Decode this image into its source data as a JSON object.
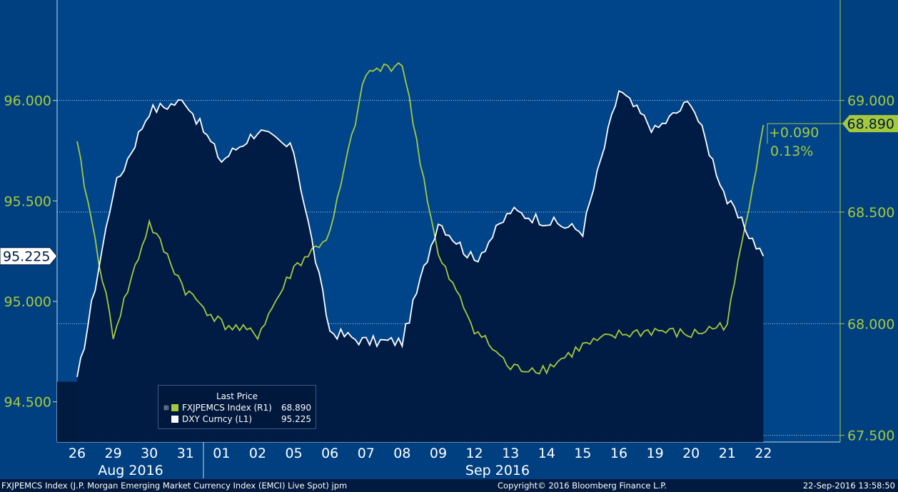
{
  "chart_data": {
    "type": "line",
    "title": "",
    "xlabel": "",
    "grid": "horizontal dotted",
    "x": [
      "26",
      "29",
      "30",
      "31",
      "01",
      "02",
      "05",
      "06",
      "07",
      "08",
      "09",
      "12",
      "13",
      "14",
      "15",
      "16",
      "19",
      "20",
      "21",
      "22"
    ],
    "month_labels": [
      "Aug 2016",
      "Sep 2016"
    ],
    "left_axis": {
      "ticks": [
        "96.000",
        "95.500",
        "95.000",
        "94.500"
      ],
      "ylim": [
        94.3,
        96.5
      ]
    },
    "right_axis": {
      "ticks": [
        "69.000",
        "68.500",
        "68.000",
        "67.500"
      ],
      "ylim": [
        67.47,
        69.45
      ]
    },
    "series": [
      {
        "name": "FXJPEMCS Index (R1)",
        "axis": "right",
        "color": "#a6c93c",
        "values": [
          68.8,
          67.95,
          68.45,
          68.15,
          68.0,
          67.95,
          68.25,
          68.4,
          69.12,
          69.17,
          68.3,
          67.98,
          67.8,
          67.8,
          67.9,
          67.95,
          67.97,
          67.95,
          68.0,
          68.89
        ]
      },
      {
        "name": "DXY Curncy (L1)",
        "axis": "left",
        "color": "#ffffff",
        "values": [
          94.6,
          95.55,
          95.95,
          96.0,
          95.7,
          95.85,
          95.75,
          94.85,
          94.8,
          94.8,
          95.4,
          95.2,
          95.45,
          95.4,
          95.35,
          96.05,
          95.85,
          96.0,
          95.5,
          95.225
        ]
      }
    ],
    "current_labels": {
      "left": "95.225",
      "right": "68.890"
    },
    "change": {
      "abs": "+0.090",
      "pct": "0.13%"
    }
  },
  "legend": {
    "title": "Last Price",
    "expand_icon": "⊞",
    "rows": [
      {
        "name": "FXJPEMCS Index  (R1)",
        "value": "68.890",
        "color": "#a6c93c"
      },
      {
        "name": "DXY Curncy  (L1)",
        "value": "95.225",
        "color": "#ffffff"
      }
    ]
  },
  "footer": {
    "left": "FXJPEMCS Index (J.P. Morgan Emerging Market Currency Index (EMCI) Live Spot) jpm",
    "center": "Copyright© 2016 Bloomberg Finance L.P.",
    "right": "22-Sep-2016 13:58:50"
  }
}
